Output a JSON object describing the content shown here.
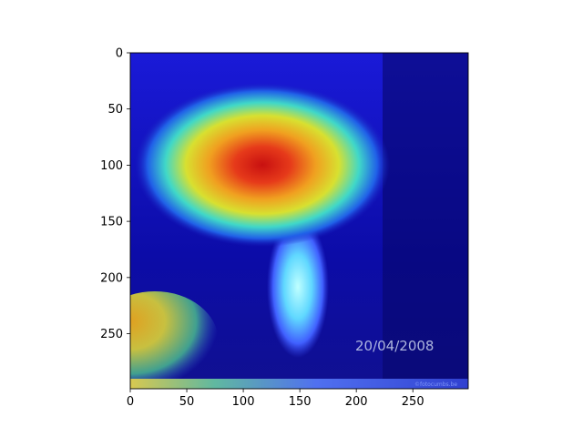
{
  "chart_data": {
    "type": "heatmap",
    "title": "",
    "xlabel": "",
    "ylabel": "",
    "xlim": [
      0,
      299
    ],
    "ylim": [
      299,
      0
    ],
    "x_ticks": [
      0,
      50,
      100,
      150,
      200,
      250
    ],
    "y_ticks": [
      0,
      50,
      100,
      150,
      200,
      250
    ],
    "x_tick_labels": [
      "0",
      "50",
      "100",
      "150",
      "200",
      "250"
    ],
    "y_tick_labels": [
      "0",
      "50",
      "100",
      "150",
      "200",
      "250"
    ],
    "colormap": "jet",
    "grid": false,
    "image_overlay_text": "20/04/2008",
    "watermark_text": "©fotocumbs.be",
    "hotspots": [
      {
        "x": 115,
        "y": 100,
        "rx": 95,
        "ry": 55,
        "intensity": 1.0
      },
      {
        "x": 150,
        "y": 210,
        "rx": 18,
        "ry": 55,
        "intensity": 0.45
      },
      {
        "x": 30,
        "y": 275,
        "rx": 35,
        "ry": 25,
        "intensity": 0.6
      }
    ],
    "colors": {
      "background": "#00008f",
      "peak": "#e01010"
    }
  }
}
